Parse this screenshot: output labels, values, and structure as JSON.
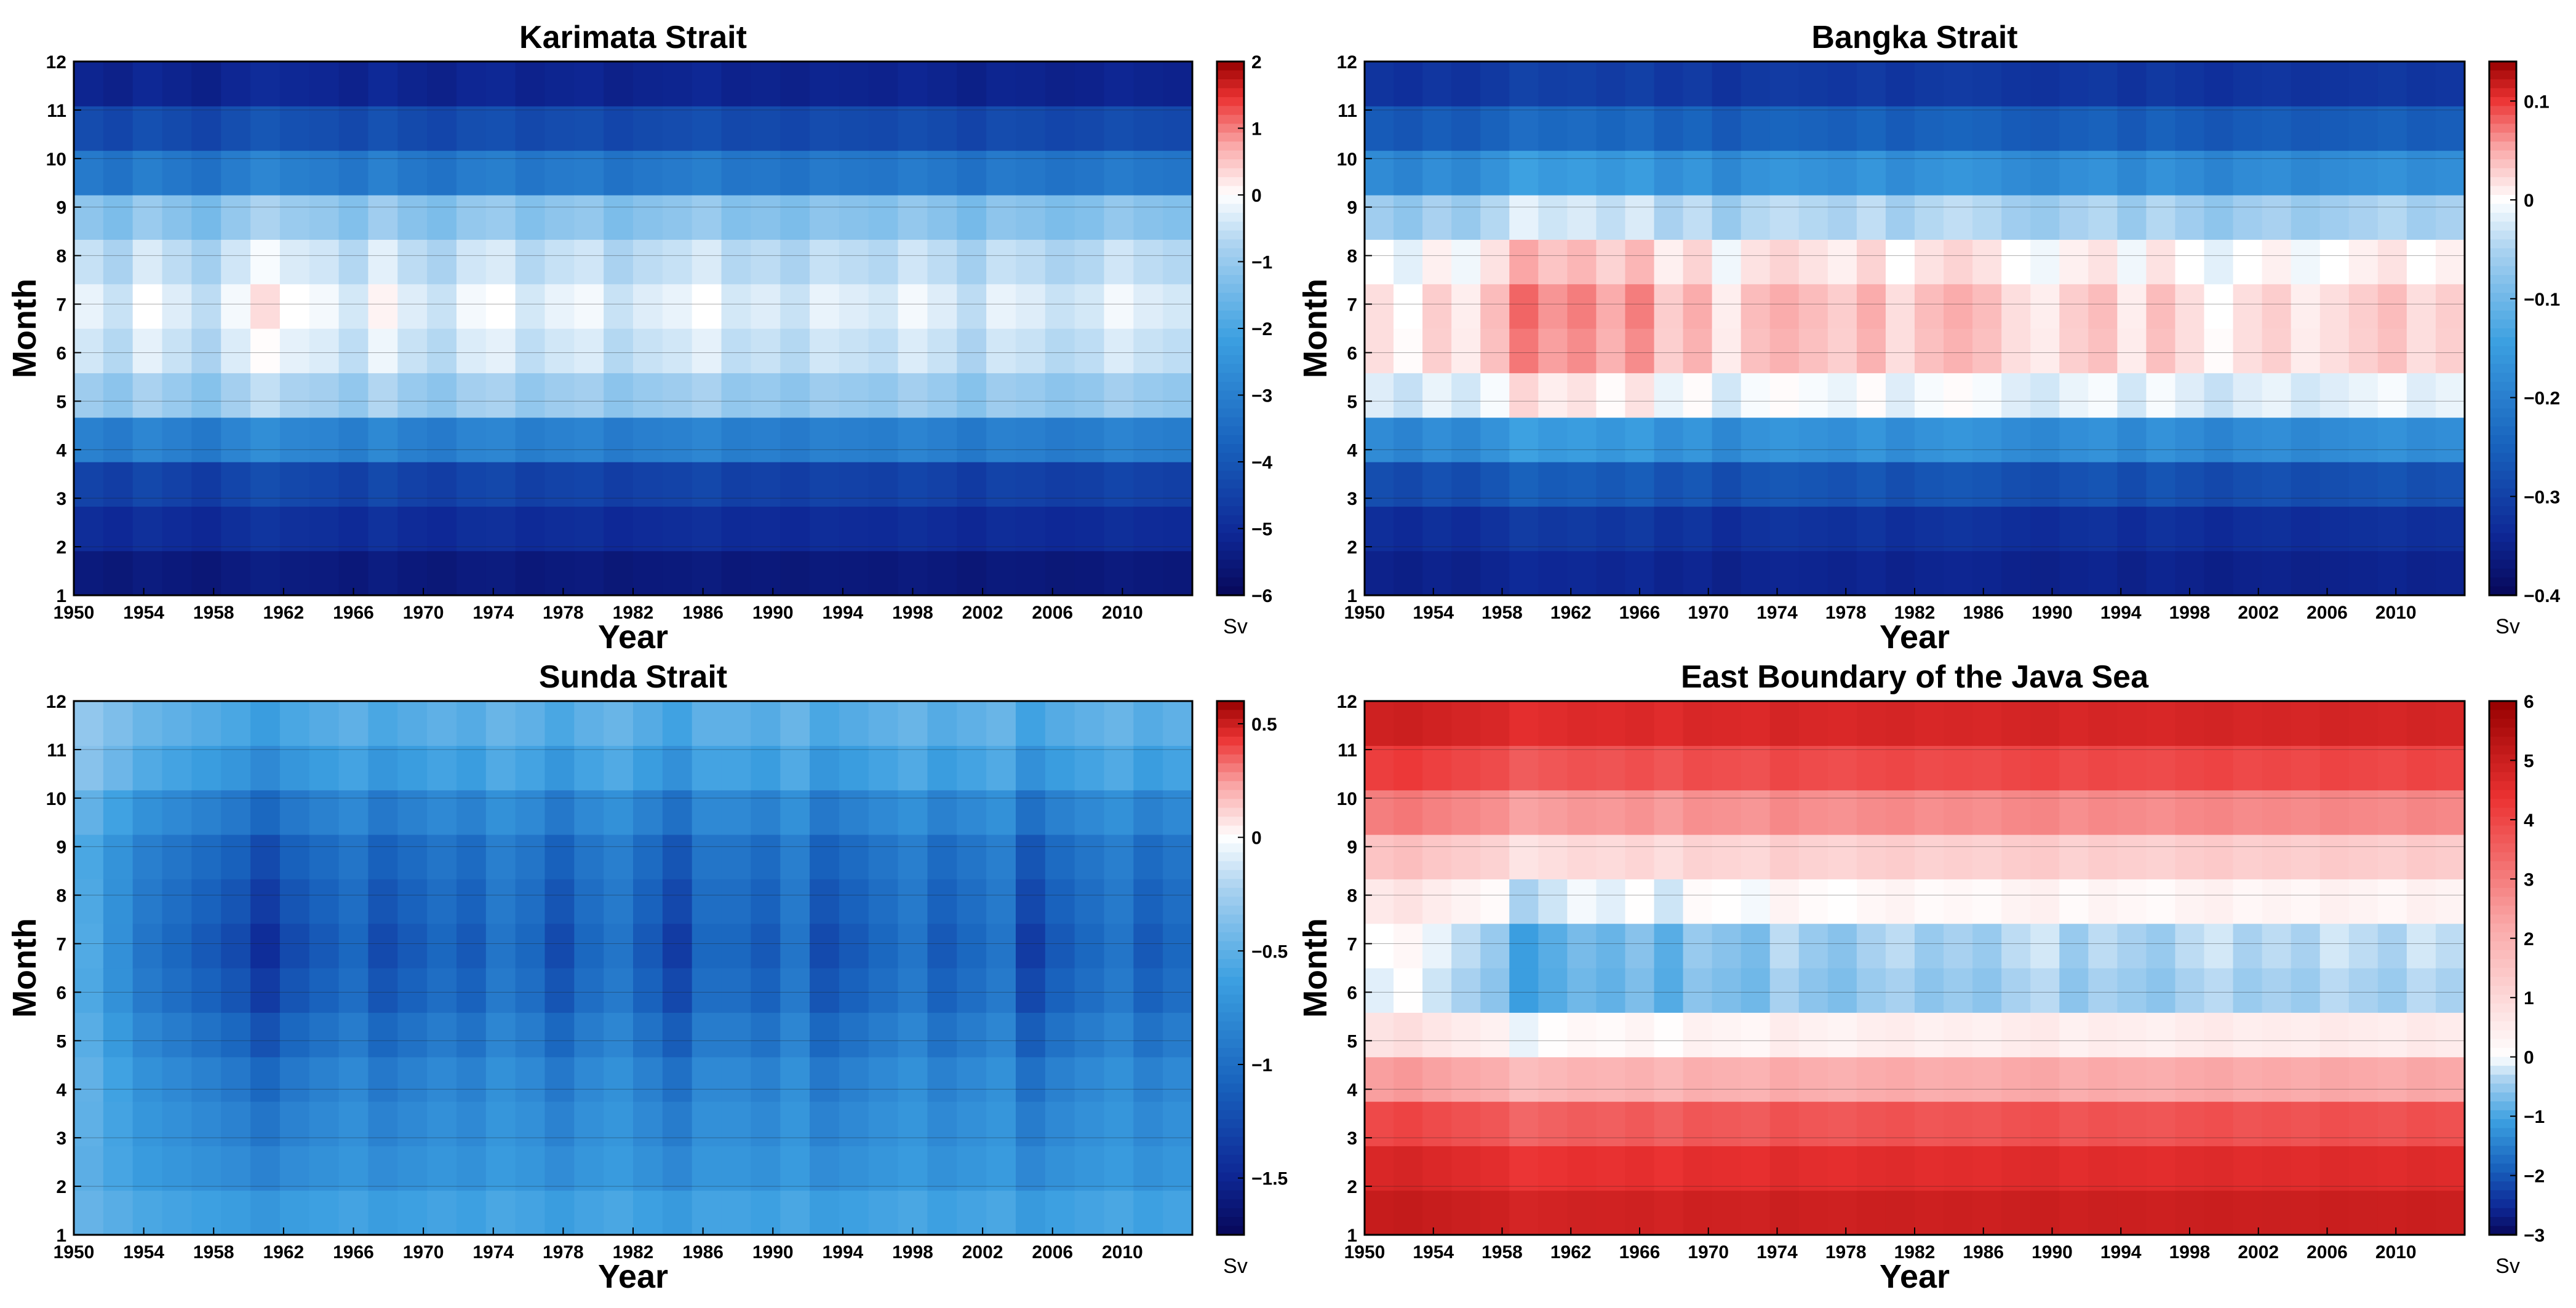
{
  "chart_data": [
    {
      "type": "heatmap",
      "title": "Karimata Strait",
      "xlabel": "Year",
      "ylabel": "Month",
      "x_ticks": [
        "1950",
        "1954",
        "1958",
        "1962",
        "1966",
        "1970",
        "1974",
        "1978",
        "1982",
        "1986",
        "1990",
        "1994",
        "1998",
        "2002",
        "2006",
        "2010"
      ],
      "y_ticks": [
        "1",
        "2",
        "3",
        "4",
        "5",
        "6",
        "7",
        "8",
        "9",
        "10",
        "11",
        "12"
      ],
      "xlim": [
        1950,
        2014
      ],
      "ylim": [
        1,
        12
      ],
      "colorbar": {
        "ticks": [
          "2",
          "1",
          "0",
          "−1",
          "−2",
          "−3",
          "−4",
          "−5",
          "−6"
        ],
        "tick_values": [
          2,
          1,
          0,
          -1,
          -2,
          -3,
          -4,
          -5,
          -6
        ],
        "range": [
          -6,
          2
        ],
        "unit": "Sv"
      },
      "seasonal_profile": [
        -5.5,
        -5.0,
        -4.5,
        -3.0,
        -1.0,
        -0.5,
        -0.3,
        -0.6,
        -1.2,
        -3.2,
        -4.3,
        -5.2
      ],
      "annual_anomaly": [
        0.1,
        -0.2,
        0.3,
        0.0,
        -0.3,
        0.2,
        0.6,
        0.3,
        0.2,
        -0.1,
        0.4,
        0.0,
        -0.2,
        0.2,
        0.3,
        -0.1,
        0.1,
        0.2,
        -0.2,
        0.0,
        0.1,
        0.3,
        -0.1,
        0.0,
        -0.2,
        0.1,
        0.0,
        -0.1,
        0.2,
        0.0,
        -0.3,
        0.1,
        0.0,
        -0.2,
        -0.1,
        0.2,
        0.0,
        -0.1
      ]
    },
    {
      "type": "heatmap",
      "title": "Bangka Strait",
      "xlabel": "Year",
      "ylabel": "Month",
      "x_ticks": [
        "1950",
        "1954",
        "1958",
        "1962",
        "1966",
        "1970",
        "1974",
        "1978",
        "1982",
        "1986",
        "1990",
        "1994",
        "1998",
        "2002",
        "2006",
        "2010"
      ],
      "y_ticks": [
        "1",
        "2",
        "3",
        "4",
        "5",
        "6",
        "7",
        "8",
        "9",
        "10",
        "11",
        "12"
      ],
      "xlim": [
        1950,
        2014
      ],
      "ylim": [
        1,
        12
      ],
      "colorbar": {
        "ticks": [
          "0.1",
          "0",
          "−0.1",
          "−0.2",
          "−0.3",
          "−0.4"
        ],
        "tick_values": [
          0.1,
          0,
          -0.1,
          -0.2,
          -0.3,
          -0.4
        ],
        "range": [
          -0.4,
          0.14
        ],
        "unit": "Sv"
      },
      "seasonal_profile": [
        -0.35,
        -0.33,
        -0.28,
        -0.18,
        -0.02,
        0.02,
        0.02,
        0.0,
        -0.06,
        -0.18,
        -0.26,
        -0.32
      ],
      "annual_anomaly": [
        0.0,
        -0.02,
        0.01,
        -0.01,
        0.02,
        0.06,
        0.04,
        0.05,
        0.03,
        0.05,
        0.01,
        0.03,
        -0.01,
        0.02,
        0.03,
        0.02,
        0.01,
        0.03,
        0.0,
        0.02,
        0.03,
        0.02,
        0.0,
        -0.01,
        0.01,
        0.02,
        -0.01,
        0.02,
        0.0,
        -0.02,
        0.0,
        0.01,
        -0.01,
        0.0,
        0.01,
        0.02,
        0.0,
        0.01
      ]
    },
    {
      "type": "heatmap",
      "title": "Sunda Strait",
      "xlabel": "Year",
      "ylabel": "Month",
      "x_ticks": [
        "1950",
        "1954",
        "1958",
        "1962",
        "1966",
        "1970",
        "1974",
        "1978",
        "1982",
        "1986",
        "1990",
        "1994",
        "1998",
        "2002",
        "2006",
        "2010"
      ],
      "y_ticks": [
        "1",
        "2",
        "3",
        "4",
        "5",
        "6",
        "7",
        "8",
        "9",
        "10",
        "11",
        "12"
      ],
      "xlim": [
        1950,
        2014
      ],
      "ylim": [
        1,
        12
      ],
      "colorbar": {
        "ticks": [
          "0.5",
          "0",
          "−0.5",
          "−1",
          "−1.5"
        ],
        "tick_values": [
          0.5,
          0,
          -0.5,
          -1,
          -1.5
        ],
        "range": [
          -1.75,
          0.6
        ],
        "unit": "Sv"
      },
      "seasonal_profile": [
        -0.6,
        -0.7,
        -0.75,
        -0.8,
        -0.9,
        -1.0,
        -1.05,
        -1.0,
        -0.95,
        -0.8,
        -0.6,
        -0.5
      ],
      "annual_anomaly": [
        0.5,
        0.3,
        0.1,
        0.0,
        -0.1,
        -0.2,
        -0.4,
        -0.2,
        -0.1,
        0.0,
        -0.2,
        -0.1,
        0.0,
        -0.1,
        0.1,
        0.0,
        -0.2,
        0.0,
        0.1,
        -0.1,
        -0.3,
        0.0,
        0.0,
        -0.1,
        0.1,
        -0.2,
        -0.1,
        0.0,
        0.1,
        -0.1,
        0.0,
        0.1,
        -0.3,
        -0.1,
        0.0,
        0.1,
        -0.1,
        0.0
      ]
    },
    {
      "type": "heatmap",
      "title": "East Boundary of the Java Sea",
      "xlabel": "Year",
      "ylabel": "Month",
      "x_ticks": [
        "1950",
        "1954",
        "1958",
        "1962",
        "1966",
        "1970",
        "1974",
        "1978",
        "1982",
        "1986",
        "1990",
        "1994",
        "1998",
        "2002",
        "2006",
        "2010"
      ],
      "y_ticks": [
        "1",
        "2",
        "3",
        "4",
        "5",
        "6",
        "7",
        "8",
        "9",
        "10",
        "11",
        "12"
      ],
      "xlim": [
        1950,
        2014
      ],
      "ylim": [
        1,
        12
      ],
      "colorbar": {
        "ticks": [
          "6",
          "5",
          "4",
          "3",
          "2",
          "1",
          "0",
          "−1",
          "−2",
          "−3"
        ],
        "tick_values": [
          6,
          5,
          4,
          3,
          2,
          1,
          0,
          -1,
          -2,
          -3
        ],
        "range": [
          -3,
          6
        ],
        "unit": "Sv"
      },
      "seasonal_profile": [
        5.0,
        4.6,
        3.8,
        2.2,
        0.5,
        -0.4,
        -0.3,
        0.3,
        1.3,
        2.8,
        4.0,
        4.8
      ],
      "annual_anomaly": [
        0.3,
        0.5,
        0.2,
        0.0,
        -0.2,
        -0.8,
        -0.6,
        -0.4,
        -0.5,
        -0.3,
        -0.6,
        -0.2,
        -0.3,
        -0.4,
        0.0,
        -0.2,
        -0.3,
        -0.1,
        0.0,
        -0.2,
        -0.1,
        -0.2,
        0.0,
        0.1,
        -0.2,
        0.0,
        -0.1,
        -0.2,
        0.0,
        0.1,
        -0.1,
        0.0,
        -0.1,
        0.1,
        0.0,
        -0.1,
        0.1,
        0.0
      ]
    }
  ]
}
